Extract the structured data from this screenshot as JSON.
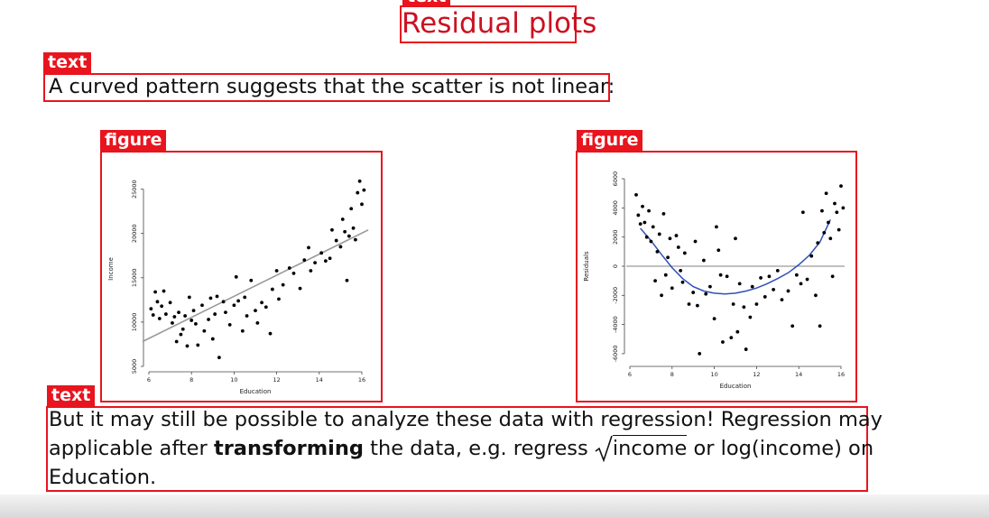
{
  "annotations": {
    "title_tag": "text",
    "text_tag": "text",
    "figure_tag": "figure"
  },
  "slide": {
    "title": "Residual plots",
    "intro": "A curved pattern suggests that the scatter is not linear:",
    "outro": {
      "line1": "But it may still be possible to analyze these data with regression! Regression may",
      "line2_a": "applicable after ",
      "line2_bold": "transforming",
      "line2_b": " the data, e.g.  regress ",
      "line2_sqrt": "income",
      "line2_c": " or log(income) on",
      "line3": "Education."
    }
  },
  "colors": {
    "annotation_red": "#e8141e",
    "title_red": "#cc1020",
    "fit_line": "#9a9a9a",
    "smooth_curve": "#2f4fb8",
    "zero_line": "#9a9a9a"
  },
  "chart_data": [
    {
      "type": "scatter",
      "title": "",
      "xlabel": "Education",
      "ylabel": "Income",
      "xlim": [
        6,
        16
      ],
      "ylim": [
        5000,
        27000
      ],
      "xticks": [
        6,
        8,
        10,
        12,
        14,
        16
      ],
      "yticks": [
        5000,
        10000,
        15000,
        20000,
        25000
      ],
      "fit_line": {
        "x": [
          5.7,
          16.3
        ],
        "y": [
          7800,
          20400
        ]
      },
      "points": [
        [
          6.1,
          11500
        ],
        [
          6.2,
          10800
        ],
        [
          6.3,
          13400
        ],
        [
          6.4,
          12300
        ],
        [
          6.5,
          10400
        ],
        [
          6.6,
          11800
        ],
        [
          6.7,
          13500
        ],
        [
          6.8,
          10900
        ],
        [
          7.0,
          12200
        ],
        [
          7.1,
          9900
        ],
        [
          7.2,
          10600
        ],
        [
          7.3,
          7800
        ],
        [
          7.4,
          11100
        ],
        [
          7.5,
          8600
        ],
        [
          7.6,
          9200
        ],
        [
          7.7,
          10700
        ],
        [
          7.8,
          7300
        ],
        [
          7.9,
          12800
        ],
        [
          8.0,
          10200
        ],
        [
          8.1,
          11300
        ],
        [
          8.2,
          9800
        ],
        [
          8.3,
          7400
        ],
        [
          8.5,
          11900
        ],
        [
          8.6,
          9000
        ],
        [
          8.8,
          10300
        ],
        [
          8.9,
          12700
        ],
        [
          9.0,
          8100
        ],
        [
          9.1,
          10900
        ],
        [
          9.2,
          12900
        ],
        [
          9.3,
          6000
        ],
        [
          9.5,
          12300
        ],
        [
          9.6,
          11100
        ],
        [
          9.8,
          9700
        ],
        [
          10.0,
          11900
        ],
        [
          10.1,
          15100
        ],
        [
          10.2,
          12400
        ],
        [
          10.4,
          9000
        ],
        [
          10.5,
          12800
        ],
        [
          10.6,
          10700
        ],
        [
          10.8,
          14700
        ],
        [
          11.0,
          11300
        ],
        [
          11.1,
          9900
        ],
        [
          11.3,
          12200
        ],
        [
          11.5,
          11700
        ],
        [
          11.7,
          8700
        ],
        [
          11.8,
          13700
        ],
        [
          12.0,
          15800
        ],
        [
          12.1,
          12600
        ],
        [
          12.3,
          14200
        ],
        [
          12.6,
          16100
        ],
        [
          12.8,
          15500
        ],
        [
          13.1,
          13800
        ],
        [
          13.3,
          17000
        ],
        [
          13.5,
          18400
        ],
        [
          13.6,
          15800
        ],
        [
          13.8,
          16700
        ],
        [
          14.1,
          17800
        ],
        [
          14.3,
          16900
        ],
        [
          14.5,
          17200
        ],
        [
          14.6,
          20400
        ],
        [
          14.8,
          19200
        ],
        [
          15.0,
          18500
        ],
        [
          15.1,
          21600
        ],
        [
          15.2,
          20200
        ],
        [
          15.3,
          14700
        ],
        [
          15.4,
          19700
        ],
        [
          15.5,
          22800
        ],
        [
          15.6,
          20600
        ],
        [
          15.7,
          19300
        ],
        [
          15.8,
          24600
        ],
        [
          15.9,
          25900
        ],
        [
          16.0,
          23300
        ],
        [
          16.1,
          24900
        ]
      ]
    },
    {
      "type": "scatter",
      "title": "",
      "xlabel": "Education",
      "ylabel": "Residuals",
      "xlim": [
        6,
        16
      ],
      "ylim": [
        -6500,
        6500
      ],
      "xticks": [
        6,
        8,
        10,
        12,
        14,
        16
      ],
      "yticks": [
        -6000,
        -4000,
        -2000,
        0,
        2000,
        4000,
        6000
      ],
      "zero_line": true,
      "smooth_curve": {
        "x": [
          6.5,
          7,
          7.5,
          8,
          8.5,
          9,
          9.5,
          10,
          10.5,
          11,
          11.5,
          12,
          12.5,
          13,
          13.5,
          14,
          14.5,
          15,
          15.5
        ],
        "y": [
          2600,
          1750,
          800,
          -100,
          -850,
          -1400,
          -1700,
          -1850,
          -1900,
          -1850,
          -1700,
          -1500,
          -1200,
          -850,
          -450,
          100,
          750,
          1650,
          3200
        ]
      },
      "points": [
        [
          6.3,
          4900
        ],
        [
          6.4,
          3500
        ],
        [
          6.5,
          2900
        ],
        [
          6.6,
          4100
        ],
        [
          6.7,
          3000
        ],
        [
          6.8,
          2000
        ],
        [
          6.9,
          3800
        ],
        [
          7.0,
          1700
        ],
        [
          7.1,
          2700
        ],
        [
          7.2,
          -1000
        ],
        [
          7.3,
          1000
        ],
        [
          7.4,
          2200
        ],
        [
          7.5,
          -2000
        ],
        [
          7.6,
          3600
        ],
        [
          7.7,
          -600
        ],
        [
          7.8,
          600
        ],
        [
          7.9,
          1900
        ],
        [
          8.0,
          -1500
        ],
        [
          8.2,
          2100
        ],
        [
          8.3,
          1300
        ],
        [
          8.4,
          -300
        ],
        [
          8.5,
          -1100
        ],
        [
          8.6,
          900
        ],
        [
          8.8,
          -2600
        ],
        [
          9.0,
          -1800
        ],
        [
          9.1,
          1700
        ],
        [
          9.2,
          -2700
        ],
        [
          9.3,
          -6000
        ],
        [
          9.5,
          400
        ],
        [
          9.6,
          -1900
        ],
        [
          9.8,
          -1400
        ],
        [
          10.0,
          -3600
        ],
        [
          10.1,
          2700
        ],
        [
          10.2,
          1100
        ],
        [
          10.3,
          -600
        ],
        [
          10.4,
          -5200
        ],
        [
          10.6,
          -700
        ],
        [
          10.8,
          -4900
        ],
        [
          10.9,
          -2600
        ],
        [
          11.0,
          1900
        ],
        [
          11.1,
          -4500
        ],
        [
          11.2,
          -1200
        ],
        [
          11.4,
          -2800
        ],
        [
          11.5,
          -5700
        ],
        [
          11.7,
          -3500
        ],
        [
          11.8,
          -1400
        ],
        [
          12.0,
          -2600
        ],
        [
          12.2,
          -800
        ],
        [
          12.4,
          -2100
        ],
        [
          12.6,
          -700
        ],
        [
          12.8,
          -1600
        ],
        [
          13.0,
          -300
        ],
        [
          13.2,
          -2300
        ],
        [
          13.5,
          -1700
        ],
        [
          13.7,
          -4100
        ],
        [
          13.9,
          -600
        ],
        [
          14.1,
          -1200
        ],
        [
          14.2,
          3700
        ],
        [
          14.4,
          -900
        ],
        [
          14.6,
          700
        ],
        [
          14.8,
          -2000
        ],
        [
          14.9,
          1600
        ],
        [
          15.0,
          -4100
        ],
        [
          15.1,
          3800
        ],
        [
          15.2,
          2300
        ],
        [
          15.3,
          5000
        ],
        [
          15.4,
          3000
        ],
        [
          15.5,
          1900
        ],
        [
          15.6,
          -700
        ],
        [
          15.7,
          4300
        ],
        [
          15.8,
          3700
        ],
        [
          15.9,
          2500
        ],
        [
          16.0,
          5500
        ],
        [
          16.1,
          4000
        ]
      ]
    }
  ]
}
